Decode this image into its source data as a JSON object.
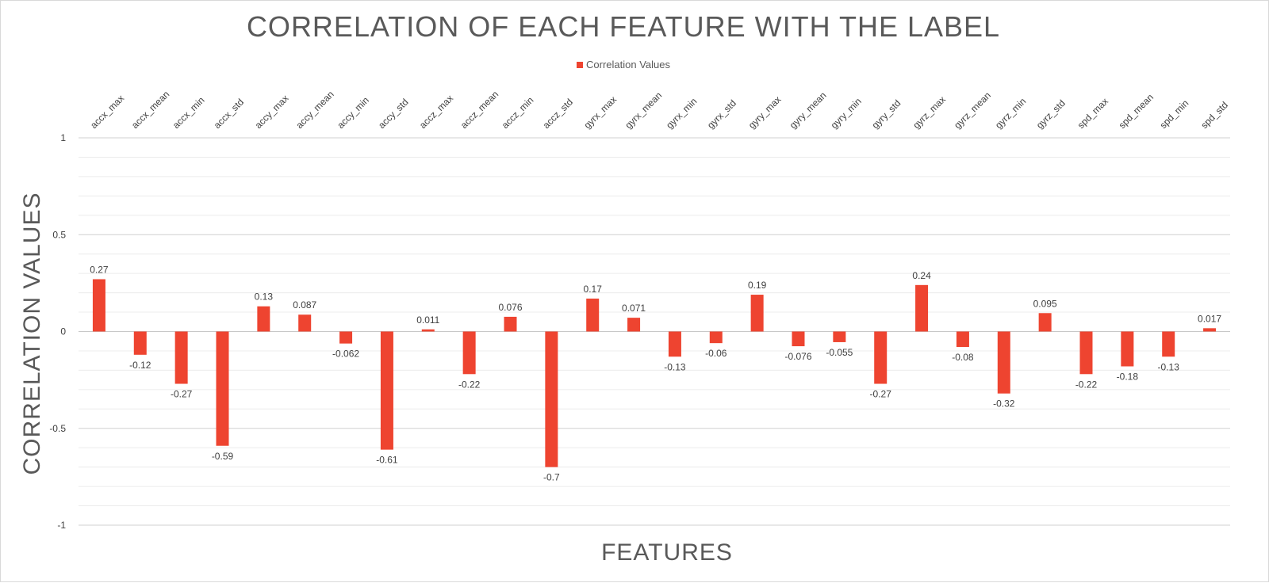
{
  "chart_data": {
    "type": "bar",
    "title": "CORRELATION OF EACH FEATURE WITH THE LABEL",
    "xlabel": "FEATURES",
    "ylabel": "CORRELATION VALUES",
    "legend": {
      "position": "top",
      "entries": [
        "Correlation Values"
      ]
    },
    "ylim": [
      -1,
      1
    ],
    "yticks": [
      "1",
      "0.5",
      "0",
      "-0.5",
      "-1"
    ],
    "grid": true,
    "bar_color": "#ee4430",
    "categories": [
      "accx_max",
      "accx_mean",
      "accx_min",
      "accx_std",
      "accy_max",
      "accy_mean",
      "accy_min",
      "accy_std",
      "accz_max",
      "accz_mean",
      "accz_min",
      "accz_std",
      "gyrx_max",
      "gyrx_mean",
      "gyrx_min",
      "gyrx_std",
      "gyry_max",
      "gyry_mean",
      "gyry_min",
      "gyry_std",
      "gyrz_max",
      "gyrz_mean",
      "gyrz_min",
      "gyrz_std",
      "spd_max",
      "spd_mean",
      "spd_min",
      "spd_std"
    ],
    "series": [
      {
        "name": "Correlation Values",
        "values": [
          0.27,
          -0.12,
          -0.27,
          -0.59,
          0.13,
          0.087,
          -0.062,
          -0.61,
          0.011,
          -0.22,
          0.076,
          -0.7,
          0.17,
          0.071,
          -0.13,
          -0.06,
          0.19,
          -0.076,
          -0.055,
          -0.27,
          0.24,
          -0.08,
          -0.32,
          0.095,
          -0.22,
          -0.18,
          -0.13,
          0.017
        ],
        "labels": [
          "0.27",
          "-0.12",
          "-0.27",
          "-0.59",
          "0.13",
          "0.087",
          "-0.062",
          "-0.61",
          "0.011",
          "-0.22",
          "0.076",
          "-0.7",
          "0.17",
          "0.071",
          "-0.13",
          "-0.06",
          "0.19",
          "-0.076",
          "-0.055",
          "-0.27",
          "0.24",
          "-0.08",
          "-0.32",
          "0.095",
          "-0.22",
          "-0.18",
          "-0.13",
          "0.017"
        ]
      }
    ]
  }
}
